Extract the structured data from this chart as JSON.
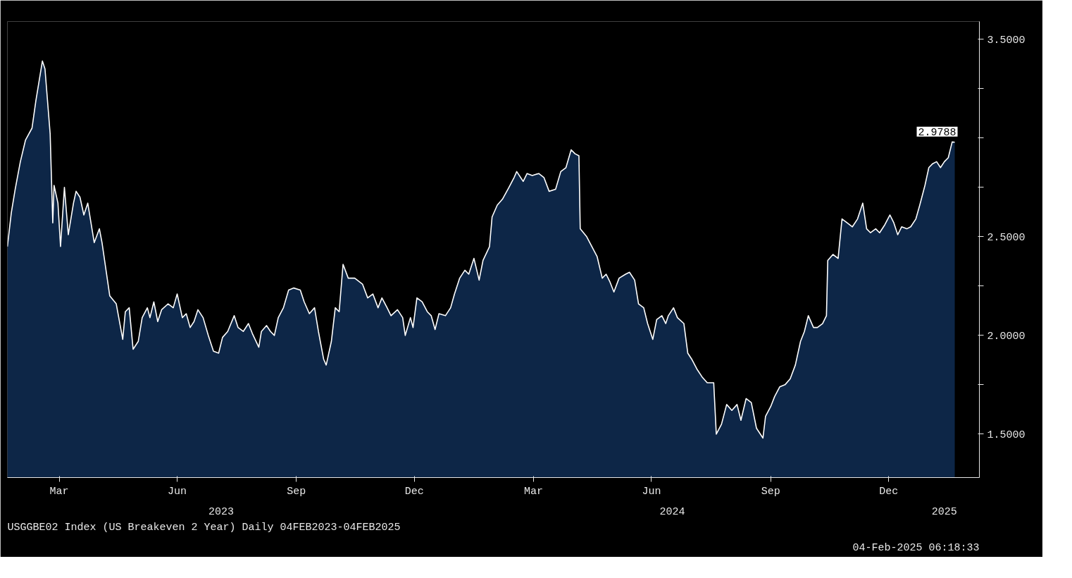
{
  "chart_data": {
    "type": "area",
    "x": [
      "2023-02-04",
      "2023-02-07",
      "2023-02-10",
      "2023-02-14",
      "2023-02-18",
      "2023-02-23",
      "2023-02-26",
      "2023-03-03",
      "2023-03-05",
      "2023-03-09",
      "2023-03-11",
      "2023-03-12",
      "2023-03-15",
      "2023-03-17",
      "2023-03-20",
      "2023-03-23",
      "2023-03-27",
      "2023-03-29",
      "2023-04-01",
      "2023-04-04",
      "2023-04-07",
      "2023-04-12",
      "2023-04-16",
      "2023-04-18",
      "2023-04-22",
      "2023-04-24",
      "2023-04-29",
      "2023-05-04",
      "2023-05-06",
      "2023-05-09",
      "2023-05-12",
      "2023-05-16",
      "2023-05-19",
      "2023-05-23",
      "2023-05-25",
      "2023-05-28",
      "2023-05-31",
      "2023-06-03",
      "2023-06-08",
      "2023-06-12",
      "2023-06-15",
      "2023-06-19",
      "2023-06-22",
      "2023-06-25",
      "2023-06-28",
      "2023-07-01",
      "2023-07-05",
      "2023-07-09",
      "2023-07-13",
      "2023-07-17",
      "2023-07-20",
      "2023-07-24",
      "2023-07-29",
      "2023-08-01",
      "2023-08-05",
      "2023-08-09",
      "2023-08-12",
      "2023-08-17",
      "2023-08-19",
      "2023-08-23",
      "2023-08-26",
      "2023-08-29",
      "2023-09-01",
      "2023-09-05",
      "2023-09-09",
      "2023-09-13",
      "2023-09-18",
      "2023-09-21",
      "2023-09-25",
      "2023-09-29",
      "2023-10-02",
      "2023-10-06",
      "2023-10-08",
      "2023-10-12",
      "2023-10-15",
      "2023-10-18",
      "2023-10-21",
      "2023-10-25",
      "2023-10-30",
      "2023-11-05",
      "2023-11-09",
      "2023-11-13",
      "2023-11-17",
      "2023-11-20",
      "2023-11-24",
      "2023-11-27",
      "2023-12-02",
      "2023-12-06",
      "2023-12-08",
      "2023-12-12",
      "2023-12-14",
      "2023-12-17",
      "2023-12-21",
      "2023-12-25",
      "2023-12-28",
      "2023-12-31",
      "2024-01-03",
      "2024-01-08",
      "2024-01-12",
      "2024-01-15",
      "2024-01-19",
      "2024-01-23",
      "2024-01-26",
      "2024-01-30",
      "2024-02-03",
      "2024-02-06",
      "2024-02-11",
      "2024-02-13",
      "2024-02-17",
      "2024-02-21",
      "2024-02-26",
      "2024-03-01",
      "2024-03-03",
      "2024-03-08",
      "2024-03-11",
      "2024-03-15",
      "2024-03-20",
      "2024-03-24",
      "2024-03-28",
      "2024-04-02",
      "2024-04-06",
      "2024-04-10",
      "2024-04-14",
      "2024-04-17",
      "2024-04-20",
      "2024-04-21",
      "2024-04-26",
      "2024-04-30",
      "2024-05-04",
      "2024-05-08",
      "2024-05-11",
      "2024-05-14",
      "2024-05-17",
      "2024-05-21",
      "2024-05-26",
      "2024-05-29",
      "2024-06-02",
      "2024-06-05",
      "2024-06-09",
      "2024-06-12",
      "2024-06-16",
      "2024-06-19",
      "2024-06-23",
      "2024-06-26",
      "2024-06-28",
      "2024-07-02",
      "2024-07-05",
      "2024-07-10",
      "2024-07-13",
      "2024-07-16",
      "2024-07-20",
      "2024-07-24",
      "2024-07-28",
      "2024-08-02",
      "2024-08-04",
      "2024-08-08",
      "2024-08-12",
      "2024-08-16",
      "2024-08-20",
      "2024-08-23",
      "2024-08-27",
      "2024-08-31",
      "2024-09-04",
      "2024-09-09",
      "2024-09-11",
      "2024-09-15",
      "2024-09-18",
      "2024-09-22",
      "2024-09-26",
      "2024-09-30",
      "2024-10-04",
      "2024-10-08",
      "2024-10-11",
      "2024-10-14",
      "2024-10-18",
      "2024-10-21",
      "2024-10-25",
      "2024-10-28",
      "2024-10-29",
      "2024-11-02",
      "2024-11-06",
      "2024-11-09",
      "2024-11-13",
      "2024-11-17",
      "2024-11-21",
      "2024-11-25",
      "2024-11-28",
      "2024-12-01",
      "2024-12-05",
      "2024-12-08",
      "2024-12-12",
      "2024-12-16",
      "2024-12-19",
      "2024-12-22",
      "2024-12-25",
      "2024-12-29",
      "2025-01-01",
      "2025-01-05",
      "2025-01-08",
      "2025-01-12",
      "2025-01-15",
      "2025-01-18",
      "2025-01-21",
      "2025-01-24",
      "2025-01-27",
      "2025-01-30",
      "2025-02-02",
      "2025-02-04"
    ],
    "series": [
      {
        "color": "#0d2647",
        "values": [
          2.45,
          2.62,
          2.74,
          2.88,
          2.99,
          3.05,
          3.19,
          3.39,
          3.35,
          3.02,
          2.57,
          2.76,
          2.67,
          2.45,
          2.75,
          2.51,
          2.67,
          2.73,
          2.7,
          2.61,
          2.67,
          2.47,
          2.54,
          2.47,
          2.29,
          2.2,
          2.16,
          1.98,
          2.12,
          2.14,
          1.93,
          1.97,
          2.09,
          2.14,
          2.09,
          2.17,
          2.07,
          2.13,
          2.16,
          2.14,
          2.21,
          2.09,
          2.11,
          2.04,
          2.07,
          2.13,
          2.09,
          2.0,
          1.92,
          1.91,
          1.99,
          2.02,
          2.1,
          2.04,
          2.02,
          2.06,
          2.01,
          1.94,
          2.02,
          2.05,
          2.02,
          2.0,
          2.09,
          2.14,
          2.23,
          2.24,
          2.23,
          2.17,
          2.11,
          2.14,
          2.02,
          1.88,
          1.85,
          1.97,
          2.14,
          2.12,
          2.36,
          2.29,
          2.29,
          2.26,
          2.19,
          2.21,
          2.14,
          2.19,
          2.14,
          2.1,
          2.13,
          2.09,
          2.0,
          2.09,
          2.04,
          2.19,
          2.17,
          2.12,
          2.1,
          2.03,
          2.11,
          2.1,
          2.14,
          2.21,
          2.29,
          2.33,
          2.31,
          2.39,
          2.28,
          2.38,
          2.45,
          2.6,
          2.66,
          2.69,
          2.75,
          2.8,
          2.83,
          2.78,
          2.82,
          2.81,
          2.82,
          2.8,
          2.73,
          2.74,
          2.83,
          2.85,
          2.94,
          2.92,
          2.91,
          2.54,
          2.5,
          2.45,
          2.4,
          2.29,
          2.31,
          2.27,
          2.22,
          2.29,
          2.31,
          2.32,
          2.28,
          2.16,
          2.14,
          2.06,
          1.98,
          2.08,
          2.1,
          2.06,
          2.1,
          2.14,
          2.09,
          2.06,
          1.91,
          1.88,
          1.83,
          1.79,
          1.76,
          1.76,
          1.5,
          1.55,
          1.65,
          1.62,
          1.65,
          1.57,
          1.68,
          1.66,
          1.53,
          1.48,
          1.59,
          1.64,
          1.69,
          1.74,
          1.75,
          1.78,
          1.85,
          1.97,
          2.02,
          2.1,
          2.04,
          2.04,
          2.06,
          2.1,
          2.38,
          2.41,
          2.39,
          2.59,
          2.57,
          2.55,
          2.59,
          2.67,
          2.54,
          2.52,
          2.54,
          2.52,
          2.56,
          2.61,
          2.57,
          2.51,
          2.55,
          2.54,
          2.55,
          2.59,
          2.66,
          2.76,
          2.85,
          2.87,
          2.88,
          2.85,
          2.88,
          2.9,
          2.98,
          2.9788
        ]
      }
    ],
    "xlim": [
      "2023-02-04",
      "2025-02-23"
    ],
    "xticks": [
      {
        "value": "2023-03-16",
        "label": "Mar"
      },
      {
        "value": "2023-06-15",
        "label": "Jun"
      },
      {
        "value": "2023-09-15",
        "label": "Sep"
      },
      {
        "value": "2023-12-15",
        "label": "Dec"
      },
      {
        "value": "2024-03-16",
        "label": "Mar"
      },
      {
        "value": "2024-06-15",
        "label": "Jun"
      },
      {
        "value": "2024-09-15",
        "label": "Sep"
      },
      {
        "value": "2024-12-15",
        "label": "Dec"
      }
    ],
    "x2lim": [
      "2023-02-04",
      "2025-02-23"
    ],
    "x2ticks": [
      {
        "value": "2023-07-19",
        "label": "2023"
      },
      {
        "value": "2024-07-01",
        "label": "2024"
      },
      {
        "value": "2025-01-27",
        "label": "2025"
      }
    ],
    "ylim": [
      1.28,
      3.59
    ],
    "yticks": [
      {
        "value": 1.5,
        "label": "1.5000"
      },
      {
        "value": 1.75,
        "label": null
      },
      {
        "value": 2.0,
        "label": "2.0000"
      },
      {
        "value": 2.25,
        "label": null
      },
      {
        "value": 2.5,
        "label": "2.5000"
      },
      {
        "value": 2.75,
        "label": null
      },
      {
        "value": 3.0,
        "label": null
      },
      {
        "value": 3.25,
        "label": null
      },
      {
        "value": 3.5,
        "label": "3.5000"
      }
    ],
    "annotations": [
      {
        "text": "2.9788",
        "x": "2025-02-04",
        "y": 2.9788
      },
      "USGGBE02 Index (US Breakeven 2 Year)  Daily 04FEB2023-04FEB2025",
      "04-Feb-2025 06:18:33"
    ],
    "grid": false
  }
}
